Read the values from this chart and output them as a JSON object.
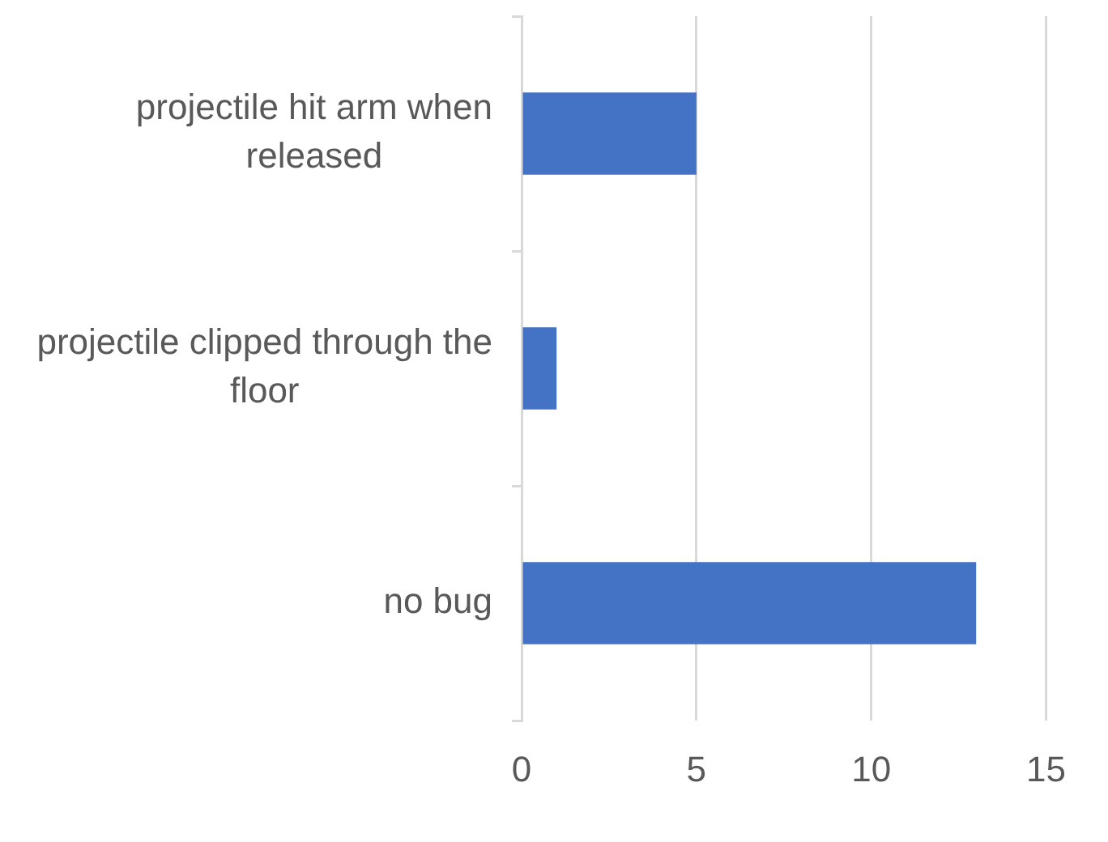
{
  "chart_data": {
    "type": "bar",
    "orientation": "horizontal",
    "categories": [
      "projectile hit arm when released",
      "projectile clipped through the floor",
      "no bug"
    ],
    "values": [
      5,
      1,
      13
    ],
    "color": "#4472c4",
    "xlim": [
      0,
      15
    ],
    "xticks": [
      0,
      5,
      10,
      15
    ],
    "grid": "x",
    "legend": false
  }
}
